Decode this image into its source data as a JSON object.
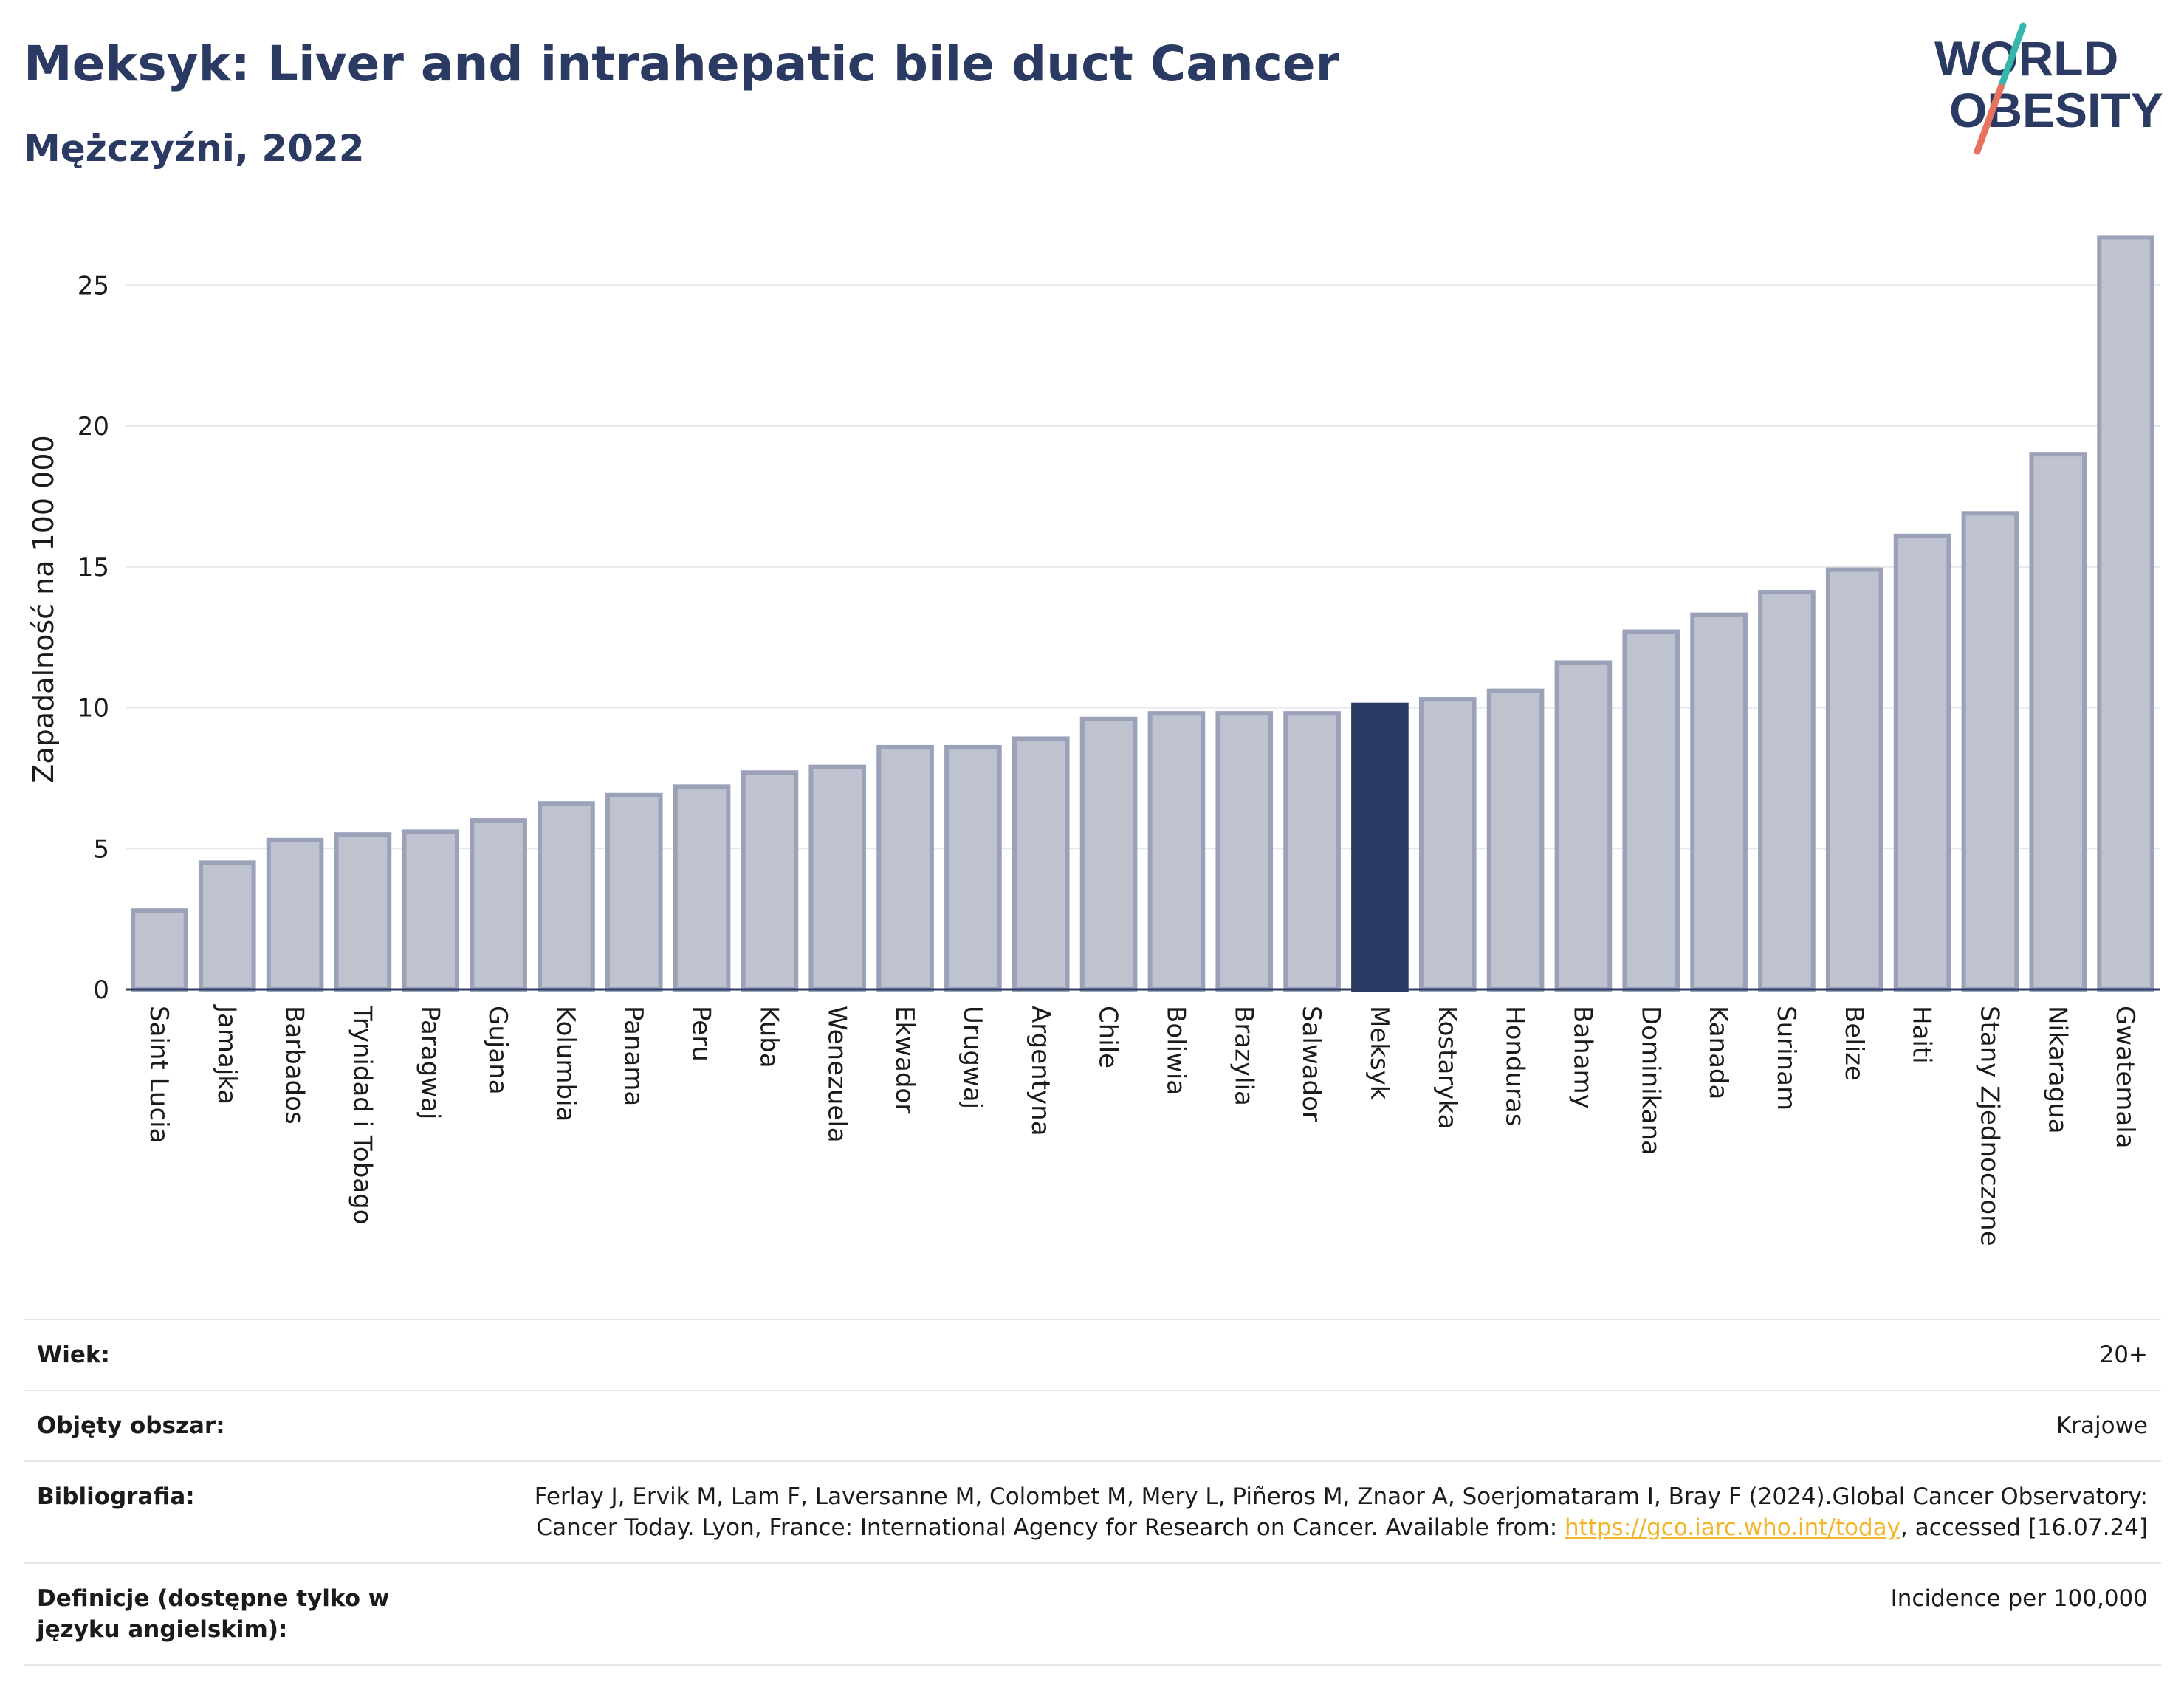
{
  "header": {
    "title": "Meksyk: Liver and intrahepatic bile duct Cancer",
    "subtitle": "Mężczyźni, 2022"
  },
  "logo": {
    "line1": "WORLD",
    "line2": "OBESITY",
    "colors": {
      "text": "#2b3a63",
      "slash_top": "#35b7b0",
      "slash_bottom": "#e8715f"
    }
  },
  "colors": {
    "bar": "#bfc3d0",
    "bar_edge": "#9aa1b8",
    "highlight": "#2b3a63",
    "grid": "#e6e7ea",
    "axis": "#2b3a63"
  },
  "chart_data": {
    "type": "bar",
    "ylabel": "Zapadalność na 100 000",
    "xlabel": "",
    "ylim": [
      0,
      27
    ],
    "yticks": [
      0,
      5,
      10,
      15,
      20,
      25
    ],
    "grid": true,
    "highlight": "Meksyk",
    "categories": [
      "Saint Lucia",
      "Jamajka",
      "Barbados",
      "Trynidad i Tobago",
      "Paragwaj",
      "Gujana",
      "Kolumbia",
      "Panama",
      "Peru",
      "Kuba",
      "Wenezuela",
      "Ekwador",
      "Urugwaj",
      "Argentyna",
      "Chile",
      "Boliwia",
      "Brazylia",
      "Salwador",
      "Meksyk",
      "Kostaryka",
      "Honduras",
      "Bahamy",
      "Dominikana",
      "Kanada",
      "Surinam",
      "Belize",
      "Haiti",
      "Stany Zjednoczone",
      "Nikaragua",
      "Gwatemala"
    ],
    "values": [
      2.8,
      4.5,
      5.3,
      5.5,
      5.6,
      6.0,
      6.6,
      6.9,
      7.2,
      7.7,
      7.9,
      8.6,
      8.6,
      8.9,
      9.6,
      9.8,
      9.8,
      9.8,
      10.1,
      10.3,
      10.6,
      11.6,
      12.7,
      13.3,
      14.1,
      14.9,
      16.1,
      16.9,
      19.0,
      26.7
    ]
  },
  "meta": {
    "rows": [
      {
        "label": "Wiek:",
        "value": "20+"
      },
      {
        "label": "Objęty obszar:",
        "value": "Krajowe"
      },
      {
        "label": "Bibliografia:",
        "value_pre": "Ferlay J, Ervik M, Lam F, Laversanne M, Colombet M, Mery L, Piñeros M, Znaor A, Soerjomataram I, Bray F (2024).Global Cancer Observatory: Cancer Today. Lyon, France: International Agency for Research on Cancer. Available from: ",
        "link": "https://gco.iarc.who.int/today",
        "value_post": ", accessed [16.07.24]"
      },
      {
        "label": "Definicje (dostępne tylko w języku angielskim):",
        "value": "Incidence per 100,000"
      }
    ]
  }
}
